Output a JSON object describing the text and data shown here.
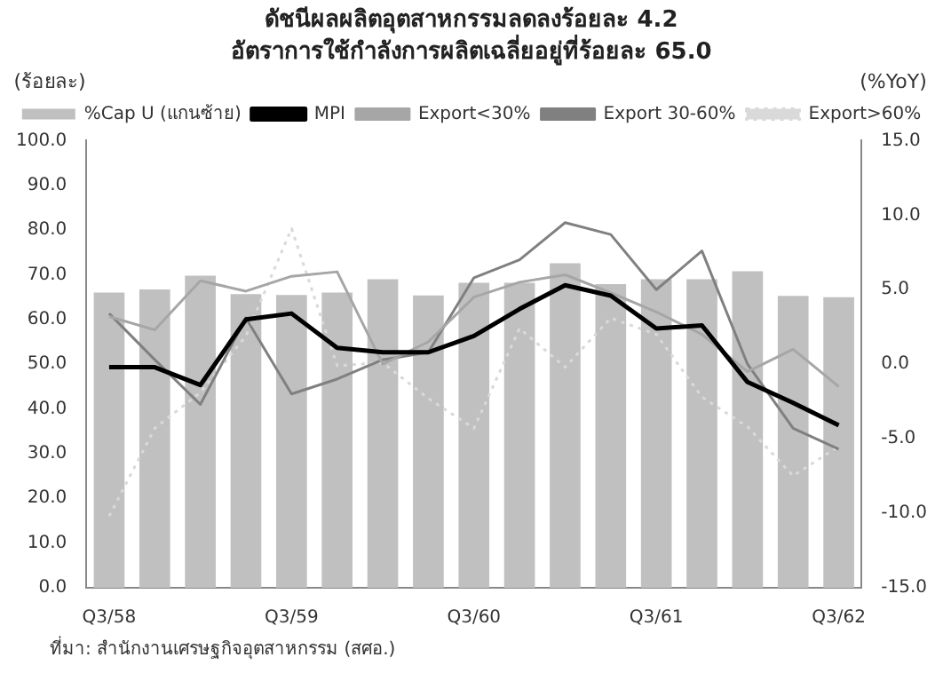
{
  "chart_data": {
    "type": "bar",
    "title": "ดัชนีผลผลิตอุตสาหกรรมลดลงร้อยละ 4.2",
    "subtitle": "อัตราการใช้กำลังการผลิตเฉลี่ยอยู่ที่ร้อยละ 65.0",
    "ylabel": "(ร้อยละ)",
    "y2label": "(%YoY)",
    "annotations": [
      "ที่มา: สำนักงานเศรษฐกิจอุตสาหกรรม (สศอ.)"
    ],
    "categories": [
      "Q3/58",
      null,
      null,
      null,
      "Q3/59",
      null,
      null,
      null,
      "Q3/60",
      null,
      null,
      null,
      "Q3/61",
      null,
      null,
      null,
      "Q3/62"
    ],
    "series": [
      {
        "name": "%Cap U (แกนซ้าย)",
        "color": "#c0c0c0",
        "values": [
          66.0,
          66.7,
          69.8,
          65.7,
          65.5,
          66.0,
          69.0,
          65.4,
          68.2,
          68.2,
          72.6,
          67.9,
          69.0,
          69.0,
          70.8,
          65.3,
          65.0
        ]
      },
      {
        "name": "MPI",
        "type": "line",
        "axis": "y2",
        "color": "#000000",
        "line_style": "solid",
        "values": [
          -0.2,
          -0.2,
          -1.4,
          3.0,
          3.4,
          1.1,
          0.8,
          0.8,
          1.9,
          3.7,
          5.3,
          4.6,
          2.4,
          2.6,
          -1.2,
          -2.6,
          -4.1
        ]
      },
      {
        "name": "Export<30%",
        "type": "line",
        "axis": "y2",
        "color": "#a6a6a6",
        "line_style": "solid",
        "values": [
          3.2,
          2.3,
          5.6,
          4.9,
          5.9,
          6.2,
          0.0,
          1.5,
          4.5,
          5.5,
          6.0,
          4.8,
          3.5,
          2.0,
          -0.5,
          1.0,
          -1.5
        ]
      },
      {
        "name": "Export 30-60%",
        "type": "line",
        "axis": "y2",
        "color": "#808080",
        "line_style": "solid",
        "values": [
          3.4,
          0.3,
          -2.7,
          3.1,
          -2.0,
          -1.0,
          0.3,
          0.8,
          5.8,
          7.0,
          9.5,
          8.7,
          5.0,
          7.6,
          0.0,
          -4.3,
          -5.7
        ]
      },
      {
        "name": "Export>60%",
        "type": "line",
        "axis": "y2",
        "color": "#d9d9d9",
        "line_style": "dotted",
        "values": [
          -10.2,
          -4.3,
          -1.9,
          1.9,
          9.1,
          -0.1,
          0.1,
          -2.3,
          -4.3,
          2.4,
          -0.2,
          3.1,
          2.0,
          -2.2,
          -4.2,
          -7.5,
          -5.5
        ]
      }
    ],
    "ylim": [
      0,
      100
    ],
    "yticks": [
      {
        "value": 0,
        "label": "0.0"
      },
      {
        "value": 10,
        "label": "10.0"
      },
      {
        "value": 20,
        "label": "20.0"
      },
      {
        "value": 30,
        "label": "30.0"
      },
      {
        "value": 40,
        "label": "40.0"
      },
      {
        "value": 50,
        "label": "50.0"
      },
      {
        "value": 60,
        "label": "60.0"
      },
      {
        "value": 70,
        "label": "70.0"
      },
      {
        "value": 80,
        "label": "80.0"
      },
      {
        "value": 90,
        "label": "90.0"
      },
      {
        "value": 100,
        "label": "100.0"
      }
    ],
    "y2lim": [
      -15,
      15
    ],
    "y2ticks": [
      {
        "value": -15,
        "label": "-15.0"
      },
      {
        "value": -10,
        "label": "-10.0"
      },
      {
        "value": -5,
        "label": "-5.0"
      },
      {
        "value": 0,
        "label": "0.0"
      },
      {
        "value": 5,
        "label": "5.0"
      },
      {
        "value": 10,
        "label": "10.0"
      },
      {
        "value": 15,
        "label": "15.0"
      }
    ],
    "grid": false,
    "legend": "top",
    "marker": "none"
  }
}
